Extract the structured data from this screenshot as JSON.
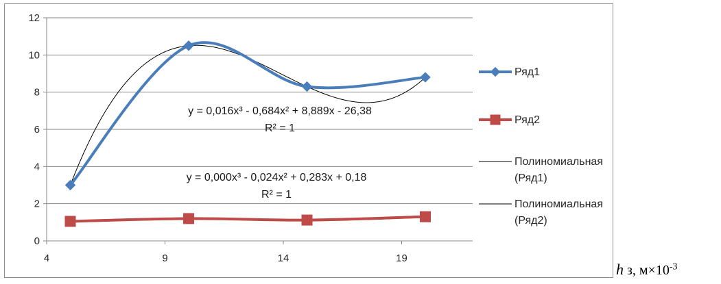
{
  "chart_data": {
    "type": "scatter",
    "title": "",
    "xlabel": "",
    "ylabel": "",
    "xlim": [
      4,
      22
    ],
    "ylim": [
      0,
      12
    ],
    "x_ticks": [
      4,
      9,
      14,
      19
    ],
    "y_ticks": [
      0,
      2,
      4,
      6,
      8,
      10,
      12
    ],
    "grid": "horizontal",
    "legend_position": "right",
    "series": [
      {
        "name": "Ряд1",
        "x": [
          5,
          10,
          15,
          20
        ],
        "values": [
          3.0,
          10.5,
          8.3,
          8.8
        ],
        "color": "#4a7ebb",
        "marker": "diamond",
        "smooth": true
      },
      {
        "name": "Ряд2",
        "x": [
          5,
          10,
          15,
          20
        ],
        "values": [
          1.05,
          1.2,
          1.12,
          1.3
        ],
        "color": "#be4b48",
        "marker": "square",
        "smooth": true
      }
    ],
    "trendlines": [
      {
        "name": "Полиномиальная (Ряд1)",
        "legend_lines": [
          "Полиномиальная",
          "(Ряд1)"
        ],
        "of_series": 0,
        "order": 3,
        "color": "#000000",
        "equation": "y = 0,016x³ - 0,684x² + 8,889x - 26,38",
        "r2": "R² = 1"
      },
      {
        "name": "Полиномиальная (Ряд2)",
        "legend_lines": [
          "Полиномиальная",
          "(Ряд2)"
        ],
        "of_series": 1,
        "order": 3,
        "color": "#000000",
        "equation": "y = 0,000x³ - 0,024x² + 0,283x + 0,18",
        "r2": "R² = 1"
      }
    ]
  },
  "caption": {
    "symbol": "h",
    "text": " з, м×10",
    "exponent": "-3"
  }
}
